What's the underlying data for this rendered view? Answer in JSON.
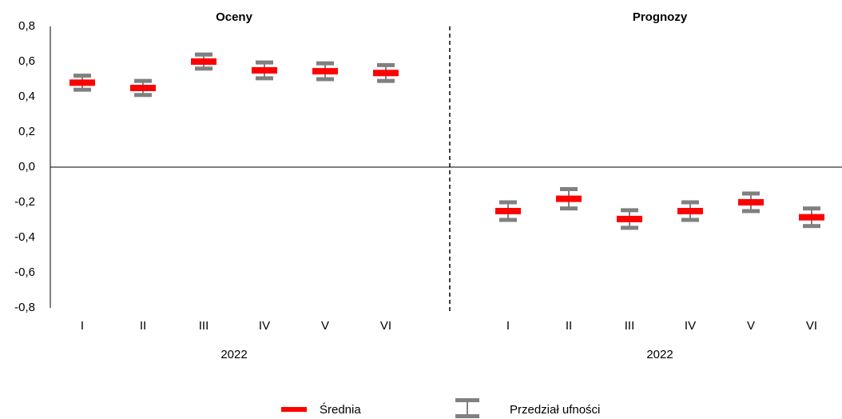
{
  "chart_data": {
    "type": "errorbar",
    "ylim": [
      -0.8,
      0.8
    ],
    "yticks": [
      {
        "value": -0.8,
        "label": "-0,8"
      },
      {
        "value": -0.6,
        "label": "-0,6"
      },
      {
        "value": -0.4,
        "label": "-0,4"
      },
      {
        "value": -0.2,
        "label": "-0,2"
      },
      {
        "value": 0,
        "label": "0,0"
      },
      {
        "value": 0.2,
        "label": "0,2"
      },
      {
        "value": 0.4,
        "label": "0,4"
      },
      {
        "value": 0.6,
        "label": "0,6"
      },
      {
        "value": 0.8,
        "label": "0,8"
      }
    ],
    "series": [
      {
        "name": "Średnia",
        "color": "#ff0000"
      },
      {
        "name": "Przedział ufności",
        "color": "#808080"
      }
    ],
    "groups": [
      {
        "title": "Oceny",
        "xlabel": "2022",
        "categories": [
          "I",
          "II",
          "III",
          "IV",
          "V",
          "VI"
        ],
        "values": [
          0.48,
          0.45,
          0.6,
          0.55,
          0.545,
          0.535
        ],
        "errors": [
          0.04,
          0.04,
          0.04,
          0.045,
          0.045,
          0.045
        ]
      },
      {
        "title": "Prognozy",
        "xlabel": "2022",
        "categories": [
          "I",
          "II",
          "III",
          "IV",
          "V",
          "VI"
        ],
        "values": [
          -0.25,
          -0.18,
          -0.295,
          -0.25,
          -0.2,
          -0.285
        ],
        "errors": [
          0.05,
          0.055,
          0.05,
          0.05,
          0.05,
          0.05
        ]
      }
    ]
  }
}
